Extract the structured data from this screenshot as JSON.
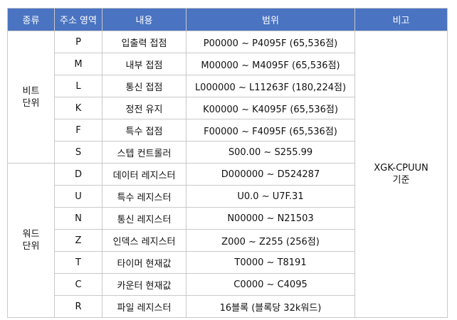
{
  "headers": [
    "종류",
    "주소 영역",
    "내용",
    "범위",
    "비고"
  ],
  "groups": [
    {
      "type_line1": "비트",
      "type_line2": "단위",
      "rows": [
        {
          "area": "P",
          "content": "입출력 접점",
          "range": "P00000 ~ P4095F (65,536점)"
        },
        {
          "area": "M",
          "content": "내부 접점",
          "range": "M00000 ~ M4095F (65,536점)"
        },
        {
          "area": "L",
          "content": "통신 접점",
          "range": "L000000 ~ L11263F (180,224점)"
        },
        {
          "area": "K",
          "content": "정전 유지",
          "range": "K00000 ~ K4095F (65,536점)"
        },
        {
          "area": "F",
          "content": "특수 접점",
          "range": "F00000 ~ F4095F (65,536점)"
        },
        {
          "area": "S",
          "content": "스텝 컨트롤러",
          "range": "S00.00 ~ S255.99"
        }
      ]
    },
    {
      "type_line1": "워드",
      "type_line2": "단위",
      "rows": [
        {
          "area": "D",
          "content": "데이터 레지스터",
          "range": "D000000 ~ D524287"
        },
        {
          "area": "U",
          "content": "특수 레지스터",
          "range": "U0.0 ~ U7F.31"
        },
        {
          "area": "N",
          "content": "통신 레지스터",
          "range": "N00000 ~ N21503"
        },
        {
          "area": "Z",
          "content": "인덱스 레지스터",
          "range": "Z000 ~ Z255 (256점)"
        },
        {
          "area": "T",
          "content": "타이머 현재값",
          "range": "T0000 ~ T8191"
        },
        {
          "area": "C",
          "content": "카운터 현재값",
          "range": "C0000 ~ C4095"
        },
        {
          "area": "R",
          "content": "파일 레지스터",
          "range": "16블록 (블록당 32k워드)"
        }
      ]
    }
  ],
  "note_line1": "XGK-CPUUN",
  "note_line2": "기준"
}
